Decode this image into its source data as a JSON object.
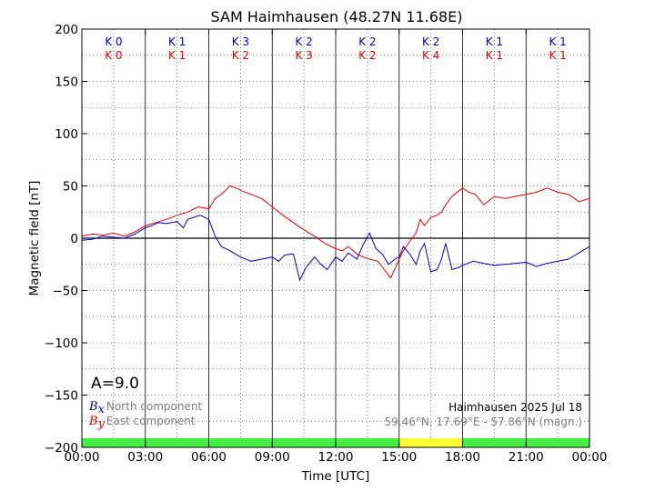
{
  "chart_data": {
    "type": "line",
    "title": "SAM Haimhausen (48.27N 11.68E)",
    "xlabel": "Time [UTC]",
    "ylabel": "Magnetic field [nT]",
    "xlim": [
      0,
      24
    ],
    "ylim": [
      -200,
      200
    ],
    "x_ticks": [
      "00:00",
      "03:00",
      "06:00",
      "09:00",
      "12:00",
      "15:00",
      "18:00",
      "21:00",
      "00:00"
    ],
    "y_ticks": [
      "200",
      "150",
      "100",
      "50",
      "0",
      "−50",
      "−100",
      "−150",
      "−200"
    ],
    "grid": true,
    "k_index": {
      "blue_label": "K",
      "red_label": "K",
      "blue": [
        0,
        1,
        3,
        2,
        2,
        2,
        1,
        1
      ],
      "red": [
        0,
        1,
        2,
        3,
        2,
        4,
        1,
        1
      ]
    },
    "a_index_label": "A=9.0",
    "legend": {
      "bx_symbol": "B",
      "bx_sub": "x",
      "bx_label": "North component",
      "by_symbol": "B",
      "by_sub": "y",
      "by_label": "East component"
    },
    "info_line1": "Haimhausen 2025 Jul 18",
    "info_line2": "59.46°N, 17.69°E - 57.86°N (magn.)",
    "activity_bar": [
      "#44ee44",
      "#44ee44",
      "#44ee44",
      "#44ee44",
      "#44ee44",
      "#ffff33",
      "#44ee44",
      "#44ee44"
    ],
    "colors": {
      "bx": "#0000cc",
      "by": "#ee0000"
    },
    "series": [
      {
        "name": "Bx",
        "x": [
          0,
          0.5,
          1,
          1.5,
          2,
          2.5,
          3,
          3.3,
          3.6,
          4,
          4.5,
          4.8,
          5,
          5.3,
          5.6,
          6,
          6.3,
          6.6,
          7,
          7.5,
          8,
          8.5,
          9,
          9.3,
          9.6,
          10,
          10.3,
          10.6,
          11,
          11.3,
          11.6,
          12,
          12.3,
          12.6,
          13,
          13.3,
          13.6,
          13.9,
          14.2,
          14.5,
          14.8,
          15,
          15.2,
          15.5,
          15.8,
          16,
          16.2,
          16.5,
          16.8,
          17,
          17.2,
          17.5,
          17.8,
          18,
          18.5,
          19,
          19.5,
          20,
          20.5,
          21,
          21.5,
          22,
          22.5,
          23,
          23.5,
          24
        ],
        "y": [
          -2,
          -1,
          2,
          1,
          0,
          4,
          10,
          12,
          15,
          14,
          16,
          10,
          18,
          20,
          22,
          18,
          2,
          -8,
          -12,
          -18,
          -22,
          -20,
          -18,
          -22,
          -16,
          -15,
          -40,
          -28,
          -18,
          -25,
          -30,
          -18,
          -22,
          -14,
          -20,
          -6,
          5,
          -10,
          -15,
          -25,
          -20,
          -18,
          -8,
          -15,
          -25,
          -12,
          -5,
          -32,
          -30,
          -20,
          -5,
          -30,
          -28,
          -26,
          -22,
          -24,
          -26,
          -25,
          -24,
          -23,
          -27,
          -24,
          -22,
          -20,
          -14,
          -8
        ]
      },
      {
        "name": "By",
        "x": [
          0,
          0.5,
          1,
          1.5,
          2,
          2.5,
          3,
          3.5,
          4,
          4.5,
          5,
          5.5,
          6,
          6.3,
          6.6,
          7,
          7.3,
          7.6,
          8,
          8.5,
          9,
          9.5,
          10,
          10.5,
          11,
          11.5,
          12,
          12.3,
          12.6,
          13,
          13.3,
          13.6,
          14,
          14.3,
          14.6,
          14.9,
          15,
          15.2,
          15.5,
          15.8,
          16,
          16.2,
          16.5,
          16.8,
          17,
          17.2,
          17.5,
          17.8,
          18,
          18.3,
          18.6,
          19,
          19.5,
          20,
          20.5,
          21,
          21.5,
          22,
          22.5,
          23,
          23.5,
          24
        ],
        "y": [
          2,
          4,
          3,
          5,
          2,
          6,
          12,
          15,
          18,
          22,
          25,
          30,
          28,
          38,
          42,
          50,
          48,
          45,
          42,
          38,
          30,
          22,
          15,
          8,
          2,
          -5,
          -10,
          -12,
          -8,
          -15,
          -18,
          -20,
          -22,
          -30,
          -38,
          -25,
          -20,
          -12,
          -3,
          5,
          18,
          12,
          20,
          22,
          25,
          32,
          40,
          45,
          48,
          44,
          42,
          32,
          40,
          38,
          40,
          42,
          44,
          48,
          44,
          42,
          35,
          38
        ]
      }
    ]
  }
}
